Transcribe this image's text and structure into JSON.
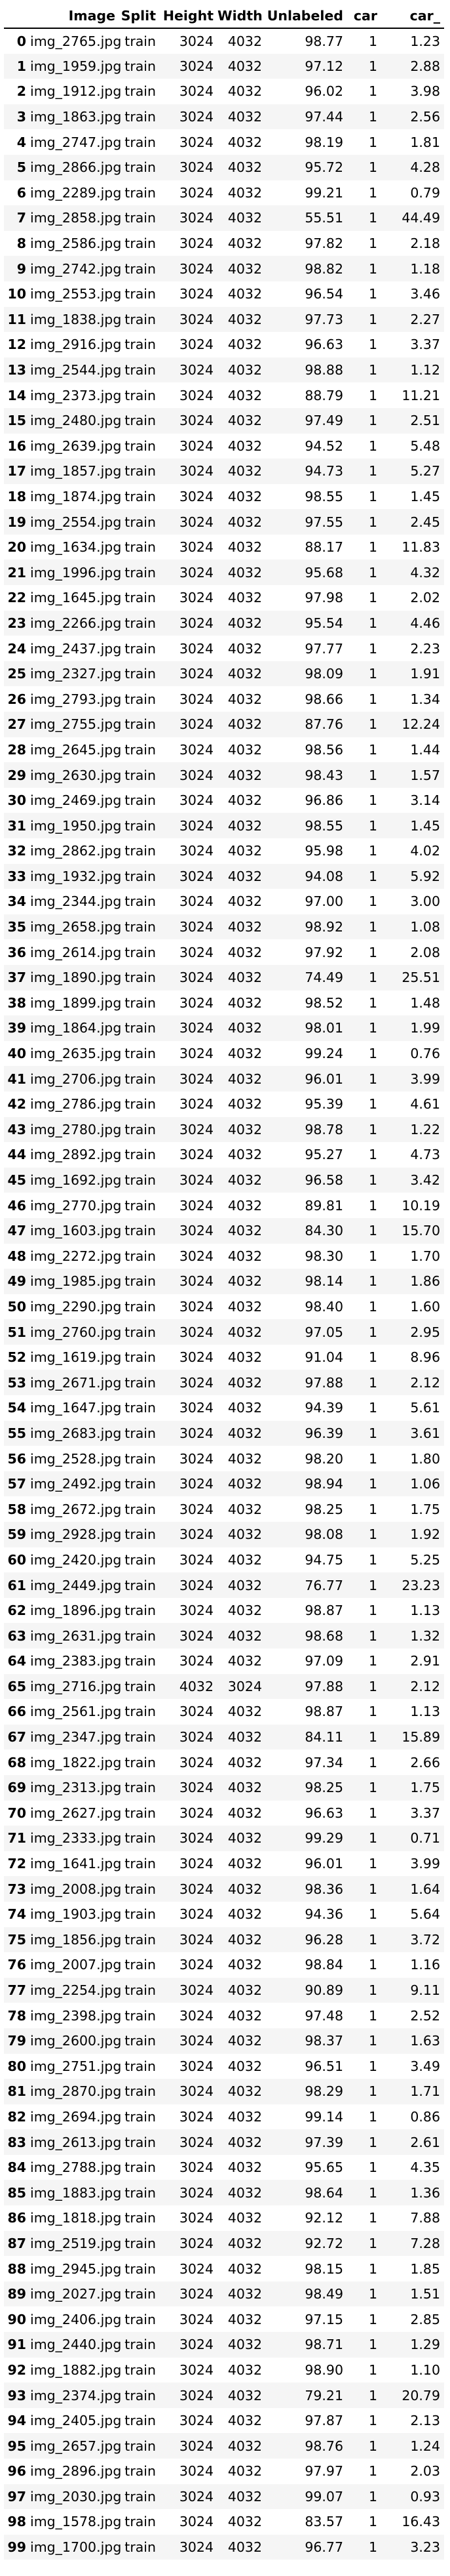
{
  "table": {
    "columns": [
      "",
      "Image",
      "Split",
      "Height",
      "Width",
      "Unlabeled",
      "car",
      "car_"
    ],
    "rows": [
      [
        "0",
        "img_2765.jpg",
        "train",
        "3024",
        "4032",
        "98.77",
        "1",
        "1.23"
      ],
      [
        "1",
        "img_1959.jpg",
        "train",
        "3024",
        "4032",
        "97.12",
        "1",
        "2.88"
      ],
      [
        "2",
        "img_1912.jpg",
        "train",
        "3024",
        "4032",
        "96.02",
        "1",
        "3.98"
      ],
      [
        "3",
        "img_1863.jpg",
        "train",
        "3024",
        "4032",
        "97.44",
        "1",
        "2.56"
      ],
      [
        "4",
        "img_2747.jpg",
        "train",
        "3024",
        "4032",
        "98.19",
        "1",
        "1.81"
      ],
      [
        "5",
        "img_2866.jpg",
        "train",
        "3024",
        "4032",
        "95.72",
        "1",
        "4.28"
      ],
      [
        "6",
        "img_2289.jpg",
        "train",
        "3024",
        "4032",
        "99.21",
        "1",
        "0.79"
      ],
      [
        "7",
        "img_2858.jpg",
        "train",
        "3024",
        "4032",
        "55.51",
        "1",
        "44.49"
      ],
      [
        "8",
        "img_2586.jpg",
        "train",
        "3024",
        "4032",
        "97.82",
        "1",
        "2.18"
      ],
      [
        "9",
        "img_2742.jpg",
        "train",
        "3024",
        "4032",
        "98.82",
        "1",
        "1.18"
      ],
      [
        "10",
        "img_2553.jpg",
        "train",
        "3024",
        "4032",
        "96.54",
        "1",
        "3.46"
      ],
      [
        "11",
        "img_1838.jpg",
        "train",
        "3024",
        "4032",
        "97.73",
        "1",
        "2.27"
      ],
      [
        "12",
        "img_2916.jpg",
        "train",
        "3024",
        "4032",
        "96.63",
        "1",
        "3.37"
      ],
      [
        "13",
        "img_2544.jpg",
        "train",
        "3024",
        "4032",
        "98.88",
        "1",
        "1.12"
      ],
      [
        "14",
        "img_2373.jpg",
        "train",
        "3024",
        "4032",
        "88.79",
        "1",
        "11.21"
      ],
      [
        "15",
        "img_2480.jpg",
        "train",
        "3024",
        "4032",
        "97.49",
        "1",
        "2.51"
      ],
      [
        "16",
        "img_2639.jpg",
        "train",
        "3024",
        "4032",
        "94.52",
        "1",
        "5.48"
      ],
      [
        "17",
        "img_1857.jpg",
        "train",
        "3024",
        "4032",
        "94.73",
        "1",
        "5.27"
      ],
      [
        "18",
        "img_1874.jpg",
        "train",
        "3024",
        "4032",
        "98.55",
        "1",
        "1.45"
      ],
      [
        "19",
        "img_2554.jpg",
        "train",
        "3024",
        "4032",
        "97.55",
        "1",
        "2.45"
      ],
      [
        "20",
        "img_1634.jpg",
        "train",
        "3024",
        "4032",
        "88.17",
        "1",
        "11.83"
      ],
      [
        "21",
        "img_1996.jpg",
        "train",
        "3024",
        "4032",
        "95.68",
        "1",
        "4.32"
      ],
      [
        "22",
        "img_1645.jpg",
        "train",
        "3024",
        "4032",
        "97.98",
        "1",
        "2.02"
      ],
      [
        "23",
        "img_2266.jpg",
        "train",
        "3024",
        "4032",
        "95.54",
        "1",
        "4.46"
      ],
      [
        "24",
        "img_2437.jpg",
        "train",
        "3024",
        "4032",
        "97.77",
        "1",
        "2.23"
      ],
      [
        "25",
        "img_2327.jpg",
        "train",
        "3024",
        "4032",
        "98.09",
        "1",
        "1.91"
      ],
      [
        "26",
        "img_2793.jpg",
        "train",
        "3024",
        "4032",
        "98.66",
        "1",
        "1.34"
      ],
      [
        "27",
        "img_2755.jpg",
        "train",
        "3024",
        "4032",
        "87.76",
        "1",
        "12.24"
      ],
      [
        "28",
        "img_2645.jpg",
        "train",
        "3024",
        "4032",
        "98.56",
        "1",
        "1.44"
      ],
      [
        "29",
        "img_2630.jpg",
        "train",
        "3024",
        "4032",
        "98.43",
        "1",
        "1.57"
      ],
      [
        "30",
        "img_2469.jpg",
        "train",
        "3024",
        "4032",
        "96.86",
        "1",
        "3.14"
      ],
      [
        "31",
        "img_1950.jpg",
        "train",
        "3024",
        "4032",
        "98.55",
        "1",
        "1.45"
      ],
      [
        "32",
        "img_2862.jpg",
        "train",
        "3024",
        "4032",
        "95.98",
        "1",
        "4.02"
      ],
      [
        "33",
        "img_1932.jpg",
        "train",
        "3024",
        "4032",
        "94.08",
        "1",
        "5.92"
      ],
      [
        "34",
        "img_2344.jpg",
        "train",
        "3024",
        "4032",
        "97.00",
        "1",
        "3.00"
      ],
      [
        "35",
        "img_2658.jpg",
        "train",
        "3024",
        "4032",
        "98.92",
        "1",
        "1.08"
      ],
      [
        "36",
        "img_2614.jpg",
        "train",
        "3024",
        "4032",
        "97.92",
        "1",
        "2.08"
      ],
      [
        "37",
        "img_1890.jpg",
        "train",
        "3024",
        "4032",
        "74.49",
        "1",
        "25.51"
      ],
      [
        "38",
        "img_1899.jpg",
        "train",
        "3024",
        "4032",
        "98.52",
        "1",
        "1.48"
      ],
      [
        "39",
        "img_1864.jpg",
        "train",
        "3024",
        "4032",
        "98.01",
        "1",
        "1.99"
      ],
      [
        "40",
        "img_2635.jpg",
        "train",
        "3024",
        "4032",
        "99.24",
        "1",
        "0.76"
      ],
      [
        "41",
        "img_2706.jpg",
        "train",
        "3024",
        "4032",
        "96.01",
        "1",
        "3.99"
      ],
      [
        "42",
        "img_2786.jpg",
        "train",
        "3024",
        "4032",
        "95.39",
        "1",
        "4.61"
      ],
      [
        "43",
        "img_2780.jpg",
        "train",
        "3024",
        "4032",
        "98.78",
        "1",
        "1.22"
      ],
      [
        "44",
        "img_2892.jpg",
        "train",
        "3024",
        "4032",
        "95.27",
        "1",
        "4.73"
      ],
      [
        "45",
        "img_1692.jpg",
        "train",
        "3024",
        "4032",
        "96.58",
        "1",
        "3.42"
      ],
      [
        "46",
        "img_2770.jpg",
        "train",
        "3024",
        "4032",
        "89.81",
        "1",
        "10.19"
      ],
      [
        "47",
        "img_1603.jpg",
        "train",
        "3024",
        "4032",
        "84.30",
        "1",
        "15.70"
      ],
      [
        "48",
        "img_2272.jpg",
        "train",
        "3024",
        "4032",
        "98.30",
        "1",
        "1.70"
      ],
      [
        "49",
        "img_1985.jpg",
        "train",
        "3024",
        "4032",
        "98.14",
        "1",
        "1.86"
      ],
      [
        "50",
        "img_2290.jpg",
        "train",
        "3024",
        "4032",
        "98.40",
        "1",
        "1.60"
      ],
      [
        "51",
        "img_2760.jpg",
        "train",
        "3024",
        "4032",
        "97.05",
        "1",
        "2.95"
      ],
      [
        "52",
        "img_1619.jpg",
        "train",
        "3024",
        "4032",
        "91.04",
        "1",
        "8.96"
      ],
      [
        "53",
        "img_2671.jpg",
        "train",
        "3024",
        "4032",
        "97.88",
        "1",
        "2.12"
      ],
      [
        "54",
        "img_1647.jpg",
        "train",
        "3024",
        "4032",
        "94.39",
        "1",
        "5.61"
      ],
      [
        "55",
        "img_2683.jpg",
        "train",
        "3024",
        "4032",
        "96.39",
        "1",
        "3.61"
      ],
      [
        "56",
        "img_2528.jpg",
        "train",
        "3024",
        "4032",
        "98.20",
        "1",
        "1.80"
      ],
      [
        "57",
        "img_2492.jpg",
        "train",
        "3024",
        "4032",
        "98.94",
        "1",
        "1.06"
      ],
      [
        "58",
        "img_2672.jpg",
        "train",
        "3024",
        "4032",
        "98.25",
        "1",
        "1.75"
      ],
      [
        "59",
        "img_2928.jpg",
        "train",
        "3024",
        "4032",
        "98.08",
        "1",
        "1.92"
      ],
      [
        "60",
        "img_2420.jpg",
        "train",
        "3024",
        "4032",
        "94.75",
        "1",
        "5.25"
      ],
      [
        "61",
        "img_2449.jpg",
        "train",
        "3024",
        "4032",
        "76.77",
        "1",
        "23.23"
      ],
      [
        "62",
        "img_1896.jpg",
        "train",
        "3024",
        "4032",
        "98.87",
        "1",
        "1.13"
      ],
      [
        "63",
        "img_2631.jpg",
        "train",
        "3024",
        "4032",
        "98.68",
        "1",
        "1.32"
      ],
      [
        "64",
        "img_2383.jpg",
        "train",
        "3024",
        "4032",
        "97.09",
        "1",
        "2.91"
      ],
      [
        "65",
        "img_2716.jpg",
        "train",
        "4032",
        "3024",
        "97.88",
        "1",
        "2.12"
      ],
      [
        "66",
        "img_2561.jpg",
        "train",
        "3024",
        "4032",
        "98.87",
        "1",
        "1.13"
      ],
      [
        "67",
        "img_2347.jpg",
        "train",
        "3024",
        "4032",
        "84.11",
        "1",
        "15.89"
      ],
      [
        "68",
        "img_1822.jpg",
        "train",
        "3024",
        "4032",
        "97.34",
        "1",
        "2.66"
      ],
      [
        "69",
        "img_2313.jpg",
        "train",
        "3024",
        "4032",
        "98.25",
        "1",
        "1.75"
      ],
      [
        "70",
        "img_2627.jpg",
        "train",
        "3024",
        "4032",
        "96.63",
        "1",
        "3.37"
      ],
      [
        "71",
        "img_2333.jpg",
        "train",
        "3024",
        "4032",
        "99.29",
        "1",
        "0.71"
      ],
      [
        "72",
        "img_1641.jpg",
        "train",
        "3024",
        "4032",
        "96.01",
        "1",
        "3.99"
      ],
      [
        "73",
        "img_2008.jpg",
        "train",
        "3024",
        "4032",
        "98.36",
        "1",
        "1.64"
      ],
      [
        "74",
        "img_1903.jpg",
        "train",
        "3024",
        "4032",
        "94.36",
        "1",
        "5.64"
      ],
      [
        "75",
        "img_1856.jpg",
        "train",
        "3024",
        "4032",
        "96.28",
        "1",
        "3.72"
      ],
      [
        "76",
        "img_2007.jpg",
        "train",
        "3024",
        "4032",
        "98.84",
        "1",
        "1.16"
      ],
      [
        "77",
        "img_2254.jpg",
        "train",
        "3024",
        "4032",
        "90.89",
        "1",
        "9.11"
      ],
      [
        "78",
        "img_2398.jpg",
        "train",
        "3024",
        "4032",
        "97.48",
        "1",
        "2.52"
      ],
      [
        "79",
        "img_2600.jpg",
        "train",
        "3024",
        "4032",
        "98.37",
        "1",
        "1.63"
      ],
      [
        "80",
        "img_2751.jpg",
        "train",
        "3024",
        "4032",
        "96.51",
        "1",
        "3.49"
      ],
      [
        "81",
        "img_2870.jpg",
        "train",
        "3024",
        "4032",
        "98.29",
        "1",
        "1.71"
      ],
      [
        "82",
        "img_2694.jpg",
        "train",
        "3024",
        "4032",
        "99.14",
        "1",
        "0.86"
      ],
      [
        "83",
        "img_2613.jpg",
        "train",
        "3024",
        "4032",
        "97.39",
        "1",
        "2.61"
      ],
      [
        "84",
        "img_2788.jpg",
        "train",
        "3024",
        "4032",
        "95.65",
        "1",
        "4.35"
      ],
      [
        "85",
        "img_1883.jpg",
        "train",
        "3024",
        "4032",
        "98.64",
        "1",
        "1.36"
      ],
      [
        "86",
        "img_1818.jpg",
        "train",
        "3024",
        "4032",
        "92.12",
        "1",
        "7.88"
      ],
      [
        "87",
        "img_2519.jpg",
        "train",
        "3024",
        "4032",
        "92.72",
        "1",
        "7.28"
      ],
      [
        "88",
        "img_2945.jpg",
        "train",
        "3024",
        "4032",
        "98.15",
        "1",
        "1.85"
      ],
      [
        "89",
        "img_2027.jpg",
        "train",
        "3024",
        "4032",
        "98.49",
        "1",
        "1.51"
      ],
      [
        "90",
        "img_2406.jpg",
        "train",
        "3024",
        "4032",
        "97.15",
        "1",
        "2.85"
      ],
      [
        "91",
        "img_2440.jpg",
        "train",
        "3024",
        "4032",
        "98.71",
        "1",
        "1.29"
      ],
      [
        "92",
        "img_1882.jpg",
        "train",
        "3024",
        "4032",
        "98.90",
        "1",
        "1.10"
      ],
      [
        "93",
        "img_2374.jpg",
        "train",
        "3024",
        "4032",
        "79.21",
        "1",
        "20.79"
      ],
      [
        "94",
        "img_2405.jpg",
        "train",
        "3024",
        "4032",
        "97.87",
        "1",
        "2.13"
      ],
      [
        "95",
        "img_2657.jpg",
        "train",
        "3024",
        "4032",
        "98.76",
        "1",
        "1.24"
      ],
      [
        "96",
        "img_2896.jpg",
        "train",
        "3024",
        "4032",
        "97.97",
        "1",
        "2.03"
      ],
      [
        "97",
        "img_2030.jpg",
        "train",
        "3024",
        "4032",
        "99.07",
        "1",
        "0.93"
      ],
      [
        "98",
        "img_1578.jpg",
        "train",
        "3024",
        "4032",
        "83.57",
        "1",
        "16.43"
      ],
      [
        "99",
        "img_1700.jpg",
        "train",
        "3024",
        "4032",
        "96.77",
        "1",
        "3.23"
      ]
    ]
  }
}
